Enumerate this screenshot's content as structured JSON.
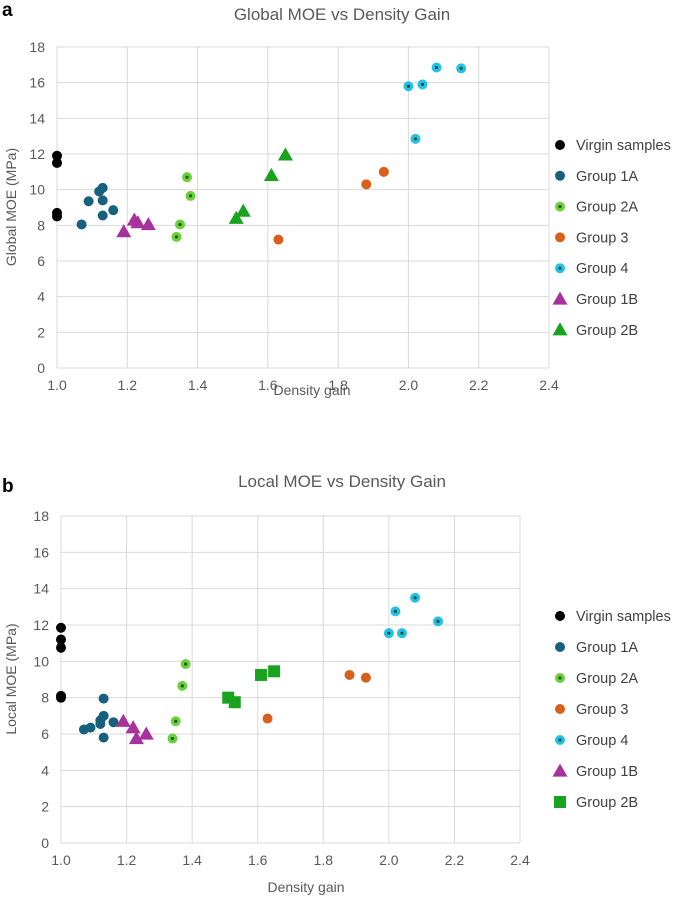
{
  "chart_data": [
    {
      "panel_label": "a",
      "type": "scatter",
      "title": "Global MOE vs Density Gain",
      "xlabel": "Density gain",
      "ylabel": "Global MOE (MPa)",
      "xlim": [
        1.0,
        2.4
      ],
      "ylim": [
        0,
        18
      ],
      "xticks": [
        "1.0",
        "1.2",
        "1.4",
        "1.6",
        "1.8",
        "2.0",
        "2.2",
        "2.4"
      ],
      "yticks": [
        "0",
        "2",
        "4",
        "6",
        "8",
        "10",
        "12",
        "14",
        "16",
        "18"
      ],
      "grid": true,
      "legend_position": "right",
      "series": [
        {
          "name": "Virgin samples",
          "marker": "circle",
          "color": "#000000",
          "points": [
            [
              1.0,
              11.9
            ],
            [
              1.0,
              11.5
            ],
            [
              1.0,
              8.7
            ],
            [
              1.0,
              8.5
            ]
          ]
        },
        {
          "name": "Group 1A",
          "marker": "circle",
          "color": "#17607e",
          "points": [
            [
              1.07,
              8.05
            ],
            [
              1.09,
              9.35
            ],
            [
              1.12,
              9.9
            ],
            [
              1.13,
              10.1
            ],
            [
              1.13,
              9.4
            ],
            [
              1.13,
              8.55
            ],
            [
              1.16,
              8.85
            ]
          ]
        },
        {
          "name": "Group 2A",
          "marker": "dot-circle",
          "color": "#6ad03c",
          "points": [
            [
              1.34,
              7.35
            ],
            [
              1.35,
              8.05
            ],
            [
              1.37,
              10.7
            ],
            [
              1.38,
              9.65
            ]
          ]
        },
        {
          "name": "Group 3",
          "marker": "circle",
          "color": "#d95f1c",
          "points": [
            [
              1.63,
              7.2
            ],
            [
              1.88,
              10.3
            ],
            [
              1.93,
              11.0
            ]
          ]
        },
        {
          "name": "Group 4",
          "marker": "dot-circle",
          "color": "#22c1ea",
          "points": [
            [
              2.0,
              15.8
            ],
            [
              2.02,
              12.85
            ],
            [
              2.04,
              15.9
            ],
            [
              2.08,
              16.85
            ],
            [
              2.15,
              16.8
            ]
          ]
        },
        {
          "name": "Group 1B",
          "marker": "triangle",
          "color": "#a8329c",
          "points": [
            [
              1.19,
              7.65
            ],
            [
              1.22,
              8.3
            ],
            [
              1.23,
              8.15
            ],
            [
              1.26,
              8.05
            ]
          ]
        },
        {
          "name": "Group 2B",
          "marker": "triangle",
          "color": "#19a31e",
          "points": [
            [
              1.51,
              8.4
            ],
            [
              1.53,
              8.8
            ],
            [
              1.61,
              10.8
            ],
            [
              1.65,
              11.95
            ]
          ]
        }
      ]
    },
    {
      "panel_label": "b",
      "type": "scatter",
      "title": "Local MOE vs Density Gain",
      "xlabel": "Density gain",
      "ylabel": "Local MOE (MPa)",
      "xlim": [
        1.0,
        2.4
      ],
      "ylim": [
        0,
        18
      ],
      "xticks": [
        "1.0",
        "1.2",
        "1.4",
        "1.6",
        "1.8",
        "2.0",
        "2.2",
        "2.4"
      ],
      "yticks": [
        "0",
        "2",
        "4",
        "6",
        "8",
        "10",
        "12",
        "14",
        "16",
        "18"
      ],
      "grid": true,
      "legend_position": "right",
      "series": [
        {
          "name": "Virgin samples",
          "marker": "circle",
          "color": "#000000",
          "points": [
            [
              1.0,
              11.85
            ],
            [
              1.0,
              11.2
            ],
            [
              1.0,
              10.75
            ],
            [
              1.0,
              8.1
            ],
            [
              1.0,
              8.0
            ]
          ]
        },
        {
          "name": "Group 1A",
          "marker": "circle",
          "color": "#17607e",
          "points": [
            [
              1.07,
              6.25
            ],
            [
              1.09,
              6.35
            ],
            [
              1.12,
              6.55
            ],
            [
              1.12,
              6.75
            ],
            [
              1.13,
              5.8
            ],
            [
              1.13,
              7.0
            ],
            [
              1.13,
              7.95
            ],
            [
              1.16,
              6.65
            ]
          ]
        },
        {
          "name": "Group 2A",
          "marker": "dot-circle",
          "color": "#6ad03c",
          "points": [
            [
              1.34,
              5.75
            ],
            [
              1.35,
              6.7
            ],
            [
              1.37,
              8.65
            ],
            [
              1.38,
              9.85
            ]
          ]
        },
        {
          "name": "Group 3",
          "marker": "circle",
          "color": "#d95f1c",
          "points": [
            [
              1.63,
              6.85
            ],
            [
              1.88,
              9.25
            ],
            [
              1.93,
              9.1
            ]
          ]
        },
        {
          "name": "Group 4",
          "marker": "dot-circle",
          "color": "#22c1ea",
          "points": [
            [
              2.0,
              11.55
            ],
            [
              2.02,
              12.75
            ],
            [
              2.04,
              11.55
            ],
            [
              2.08,
              13.5
            ],
            [
              2.15,
              12.2
            ]
          ]
        },
        {
          "name": "Group 1B",
          "marker": "triangle",
          "color": "#a8329c",
          "points": [
            [
              1.19,
              6.7
            ],
            [
              1.22,
              6.35
            ],
            [
              1.23,
              5.75
            ],
            [
              1.26,
              6.0
            ]
          ]
        },
        {
          "name": "Group 2B",
          "marker": "square",
          "color": "#19a31e",
          "points": [
            [
              1.51,
              8.0
            ],
            [
              1.53,
              7.75
            ],
            [
              1.61,
              9.25
            ],
            [
              1.65,
              9.45
            ]
          ]
        }
      ]
    }
  ]
}
